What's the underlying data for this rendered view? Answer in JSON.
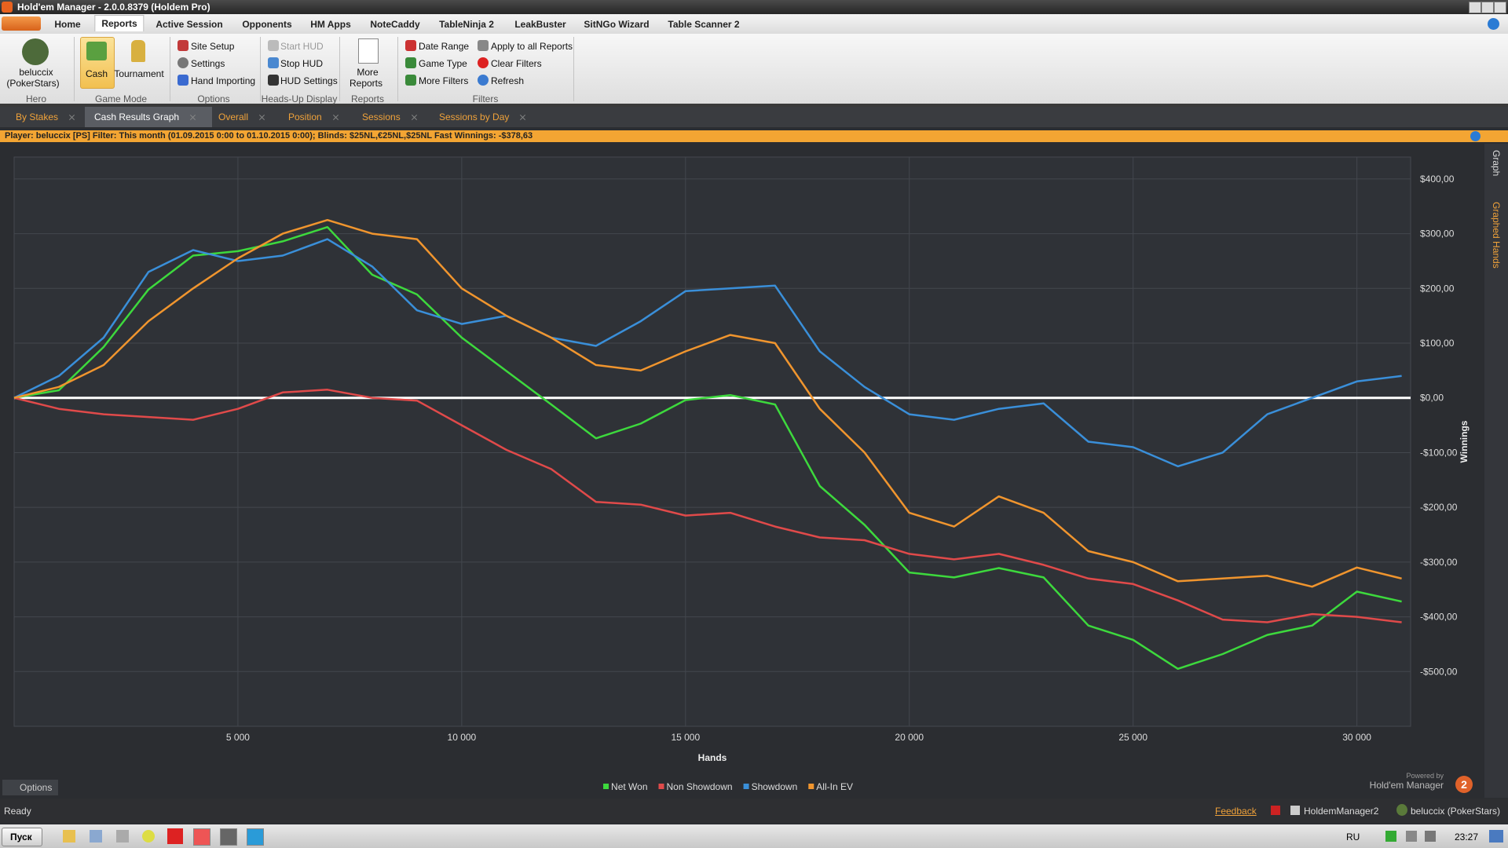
{
  "window": {
    "title": "Hold'em Manager - 2.0.0.8379 (Holdem Pro)"
  },
  "menu": {
    "items": [
      "Home",
      "Reports",
      "Active Session",
      "Opponents",
      "HM Apps",
      "NoteCaddy",
      "TableNinja 2",
      "LeakBuster",
      "SitNGo Wizard",
      "Table Scanner 2"
    ]
  },
  "ribbon": {
    "hero": {
      "name": "beluccix",
      "site": "(PokerStars)",
      "label": "Hero"
    },
    "game_mode": {
      "items": [
        "Cash",
        "Tournament"
      ],
      "label": "Game Mode"
    },
    "options": {
      "items": [
        "Site Setup",
        "Settings",
        "Hand Importing"
      ],
      "label": "Options"
    },
    "hud": {
      "items": [
        "Start HUD",
        "Stop HUD",
        "HUD Settings"
      ],
      "label": "Heads-Up Display"
    },
    "reports": {
      "items": [
        "More",
        "Reports"
      ],
      "label": "Reports"
    },
    "filters": {
      "items": [
        "Date Range",
        "Game Type",
        "More Filters",
        "Apply to all Reports",
        "Clear Filters",
        "Refresh"
      ],
      "label": "Filters"
    }
  },
  "tabs": [
    "By Stakes",
    "Cash Results Graph",
    "Overall",
    "Position",
    "Sessions",
    "Sessions by Day"
  ],
  "info_bar": "Player: beluccix [PS] Filter: This month (01.09.2015 0:00 to 01.10.2015 0:00); Blinds: $25NL,€25NL,$25NL Fast Winnings: -$378,63",
  "side_panel": {
    "tabs": [
      "Graph",
      "Graphed Hands"
    ]
  },
  "options_button": "Options",
  "branding": {
    "powered_by": "Powered by",
    "product": "Hold'em Manager",
    "badge": "2"
  },
  "status_bar": {
    "status": "Ready",
    "feedback": "Feedback",
    "app": "HoldemManager2",
    "player": "beluccix (PokerStars)"
  },
  "taskbar": {
    "start": "Пуск",
    "language": "RU",
    "time": "23:27"
  },
  "chart_data": {
    "type": "line",
    "x_label": "Hands",
    "y_label": "Winnings",
    "x": [
      0,
      1000,
      2000,
      3000,
      4000,
      5000,
      6000,
      7000,
      8000,
      9000,
      10000,
      11000,
      12000,
      13000,
      14000,
      15000,
      16000,
      17000,
      18000,
      19000,
      20000,
      21000,
      22000,
      23000,
      24000,
      25000,
      26000,
      27000,
      28000,
      29000,
      30000,
      31000
    ],
    "series": [
      {
        "name": "Net Won",
        "color": "#3dd93d",
        "values": [
          0,
          14,
          93,
          198,
          260,
          268,
          286,
          312,
          225,
          189,
          110,
          49,
          -12,
          -74,
          -47,
          -4,
          5,
          -12,
          -161,
          -232,
          -319,
          -328,
          -311,
          -328,
          -416,
          -442,
          -495,
          -468,
          -433,
          -416,
          -354,
          -372
        ]
      },
      {
        "name": "Non Showdown",
        "color": "#e04a4a",
        "values": [
          0,
          -20,
          -30,
          -35,
          -40,
          -20,
          10,
          15,
          0,
          -5,
          -50,
          -95,
          -130,
          -190,
          -195,
          -215,
          -210,
          -235,
          -255,
          -260,
          -285,
          -295,
          -285,
          -305,
          -330,
          -340,
          -370,
          -405,
          -410,
          -395,
          -400,
          -410
        ]
      },
      {
        "name": "Showdown",
        "color": "#3a8fd9",
        "values": [
          0,
          40,
          110,
          230,
          270,
          250,
          260,
          290,
          240,
          160,
          135,
          150,
          110,
          95,
          140,
          195,
          200,
          205,
          85,
          20,
          -30,
          -40,
          -20,
          -10,
          -80,
          -90,
          -125,
          -100,
          -30,
          0,
          30,
          40
        ]
      },
      {
        "name": "All-In EV",
        "color": "#f0952e",
        "values": [
          0,
          20,
          60,
          140,
          200,
          255,
          300,
          325,
          300,
          290,
          200,
          150,
          110,
          60,
          50,
          85,
          115,
          100,
          -20,
          -100,
          -210,
          -235,
          -180,
          -210,
          -280,
          -300,
          -335,
          -330,
          -325,
          -345,
          -310,
          -330
        ]
      }
    ],
    "xlim": [
      0,
      31200
    ],
    "ylim": [
      -600,
      440
    ],
    "xticks": [
      {
        "value": 5000,
        "label": "5 000"
      },
      {
        "value": 10000,
        "label": "10 000"
      },
      {
        "value": 15000,
        "label": "15 000"
      },
      {
        "value": 20000,
        "label": "20 000"
      },
      {
        "value": 25000,
        "label": "25 000"
      },
      {
        "value": 30000,
        "label": "30 000"
      }
    ],
    "yticks": [
      {
        "value": 400,
        "label": "$400,00"
      },
      {
        "value": 300,
        "label": "$300,00"
      },
      {
        "value": 200,
        "label": "$200,00"
      },
      {
        "value": 100,
        "label": "$100,00"
      },
      {
        "value": 0,
        "label": "$0,00"
      },
      {
        "value": -100,
        "label": "-$100,00"
      },
      {
        "value": -200,
        "label": "-$200,00"
      },
      {
        "value": -300,
        "label": "-$300,00"
      },
      {
        "value": -400,
        "label": "-$400,00"
      },
      {
        "value": -500,
        "label": "-$500,00"
      }
    ],
    "grid": true,
    "legend": "bottom"
  }
}
